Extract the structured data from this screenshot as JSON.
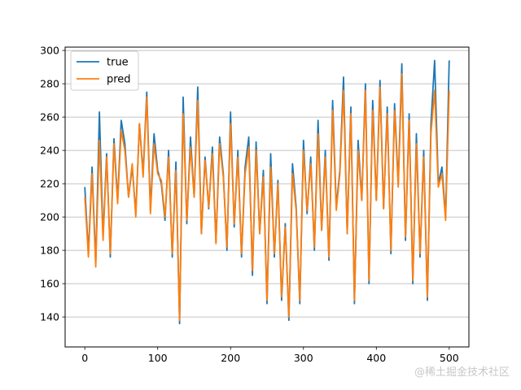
{
  "chart_data": {
    "type": "line",
    "title": "",
    "xlabel": "",
    "ylabel": "",
    "xlim": [
      -27,
      527
    ],
    "ylim": [
      122,
      302
    ],
    "xticks": [
      0,
      100,
      200,
      300,
      400,
      500
    ],
    "yticks": [
      140,
      160,
      180,
      200,
      220,
      240,
      260,
      280,
      300
    ],
    "grid": "horizontal",
    "legend": "top-left",
    "series": [
      {
        "name": "true",
        "color": "#1f77b4",
        "x": [
          0,
          5,
          10,
          15,
          20,
          25,
          30,
          35,
          40,
          45,
          50,
          55,
          60,
          65,
          70,
          75,
          80,
          85,
          90,
          95,
          100,
          105,
          110,
          115,
          120,
          125,
          130,
          135,
          140,
          145,
          150,
          155,
          160,
          165,
          170,
          175,
          180,
          185,
          190,
          195,
          200,
          205,
          210,
          215,
          220,
          225,
          230,
          235,
          240,
          245,
          250,
          255,
          260,
          265,
          270,
          275,
          280,
          285,
          290,
          295,
          300,
          305,
          310,
          315,
          320,
          325,
          330,
          335,
          340,
          345,
          350,
          355,
          360,
          365,
          370,
          375,
          380,
          385,
          390,
          395,
          400,
          405,
          410,
          415,
          420,
          425,
          430,
          435,
          440,
          445,
          450,
          455,
          460,
          465,
          470,
          475,
          480,
          485,
          490,
          495,
          500
        ],
        "values": [
          218,
          178,
          230,
          172,
          263,
          188,
          238,
          176,
          247,
          210,
          258,
          244,
          212,
          230,
          202,
          256,
          226,
          275,
          204,
          250,
          228,
          220,
          198,
          240,
          176,
          233,
          136,
          272,
          196,
          248,
          212,
          278,
          190,
          236,
          205,
          242,
          185,
          248,
          226,
          180,
          263,
          194,
          240,
          176,
          230,
          248,
          165,
          245,
          190,
          228,
          148,
          238,
          176,
          222,
          150,
          196,
          138,
          232,
          206,
          148,
          246,
          202,
          236,
          180,
          258,
          192,
          240,
          174,
          270,
          206,
          228,
          284,
          190,
          266,
          148,
          246,
          210,
          280,
          160,
          270,
          210,
          282,
          205,
          266,
          178,
          268,
          220,
          292,
          186,
          262,
          160,
          250,
          176,
          240,
          150,
          256,
          294,
          220,
          230,
          200,
          294
        ]
      },
      {
        "name": "pred",
        "color": "#ff7f0e",
        "x": [
          0,
          5,
          10,
          15,
          20,
          25,
          30,
          35,
          40,
          45,
          50,
          55,
          60,
          65,
          70,
          75,
          80,
          85,
          90,
          95,
          100,
          105,
          110,
          115,
          120,
          125,
          130,
          135,
          140,
          145,
          150,
          155,
          160,
          165,
          170,
          175,
          180,
          185,
          190,
          195,
          200,
          205,
          210,
          215,
          220,
          225,
          230,
          235,
          240,
          245,
          250,
          255,
          260,
          265,
          270,
          275,
          280,
          285,
          290,
          295,
          300,
          305,
          310,
          315,
          320,
          325,
          330,
          335,
          340,
          345,
          350,
          355,
          360,
          365,
          370,
          375,
          380,
          385,
          390,
          395,
          400,
          405,
          410,
          415,
          420,
          425,
          430,
          435,
          440,
          445,
          450,
          455,
          460,
          465,
          470,
          475,
          480,
          485,
          490,
          495,
          500
        ],
        "values": [
          212,
          176,
          226,
          170,
          246,
          186,
          236,
          178,
          244,
          208,
          252,
          240,
          212,
          232,
          200,
          256,
          224,
          272,
          202,
          244,
          226,
          222,
          200,
          236,
          178,
          228,
          138,
          262,
          198,
          242,
          212,
          270,
          190,
          234,
          206,
          238,
          184,
          244,
          224,
          182,
          256,
          196,
          236,
          178,
          226,
          242,
          168,
          240,
          190,
          224,
          150,
          230,
          178,
          220,
          152,
          194,
          140,
          226,
          204,
          150,
          240,
          204,
          232,
          182,
          250,
          192,
          236,
          176,
          264,
          204,
          226,
          276,
          190,
          262,
          150,
          240,
          210,
          276,
          162,
          264,
          210,
          278,
          205,
          262,
          180,
          264,
          218,
          286,
          188,
          258,
          162,
          244,
          178,
          236,
          152,
          250,
          276,
          218,
          226,
          198,
          276
        ]
      }
    ],
    "watermark": "@稀土掘金技术社区"
  }
}
